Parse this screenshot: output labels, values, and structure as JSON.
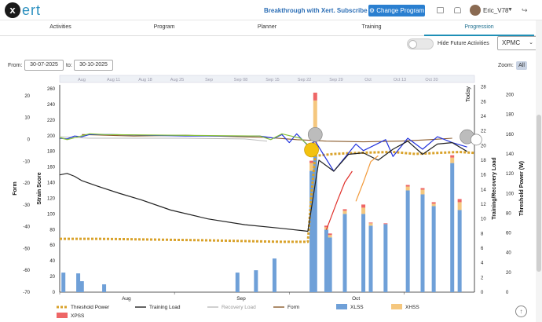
{
  "app": {
    "logo_mark": "x",
    "logo_word": "ert"
  },
  "topbar": {
    "promo": "Breakthrough with Xert. Subscribe Now!",
    "change_program": "Change Program",
    "username": "Eric_V78",
    "icons": [
      "calendar-icon",
      "bell-icon",
      "avatar",
      "chevron-down-icon",
      "sign-out-icon"
    ]
  },
  "nav": {
    "tabs": [
      {
        "label": "Activities",
        "active": false
      },
      {
        "label": "Program",
        "active": false
      },
      {
        "label": "Planner",
        "active": false
      },
      {
        "label": "Training",
        "active": false
      },
      {
        "label": "Progression",
        "active": true
      }
    ]
  },
  "controls": {
    "hide_future_label": "Hide Future Activities",
    "hide_future_on": false,
    "metric_select": "XPMC",
    "from_label": "From:",
    "from_value": "30-07-2025",
    "to_label": "to:",
    "to_value": "30-10-2025",
    "zoom_label": "Zoom:",
    "zoom_value": "All"
  },
  "chart_data": {
    "type": "line",
    "navigator_labels": [
      "Aug",
      "Aug 11",
      "Aug 18",
      "Aug 25",
      "Sep",
      "Sep 08",
      "Sep 15",
      "Sep 22",
      "Sep 29",
      "Oct",
      "Oct 13",
      "Oct 20"
    ],
    "x_ticks": [
      "Aug",
      "Sep",
      "Oct"
    ],
    "today_label": "Today",
    "form_axis": {
      "label": "Form",
      "ticks": [
        20,
        10,
        0,
        -10,
        -20,
        -30,
        -40,
        -50,
        -60,
        -70
      ]
    },
    "strain_axis": {
      "label": "Strain Score",
      "ticks": [
        260,
        240,
        220,
        200,
        180,
        160,
        140,
        120,
        100,
        80,
        60,
        40,
        20,
        0
      ]
    },
    "load_axis": {
      "label": "Training/Recovery Load",
      "ticks": [
        28,
        26,
        24,
        22,
        20,
        18,
        16,
        14,
        12,
        10,
        8,
        6,
        4,
        2,
        0
      ]
    },
    "power_axis": {
      "label": "Threshold Power (W)",
      "ticks": [
        200,
        180,
        160,
        140,
        120,
        100,
        80,
        60,
        40,
        20,
        0
      ]
    },
    "series": [
      {
        "name": "Threshold Power",
        "color": "#d9a22b",
        "style": "dotted"
      },
      {
        "name": "Training Load",
        "color": "#222222",
        "style": "line"
      },
      {
        "name": "Recovery Load",
        "color": "#bbbbbb",
        "style": "line"
      },
      {
        "name": "Form",
        "color": "#8a5a2b",
        "style": "line"
      },
      {
        "name": "XLSS",
        "color": "#6fa0d8",
        "style": "bar"
      },
      {
        "name": "XHSS",
        "color": "#f5c77e",
        "style": "bar"
      },
      {
        "name": "XPSS",
        "color": "#ee6666",
        "style": "bar"
      }
    ],
    "xlss_bars": [
      {
        "day": 1,
        "xlss": 25,
        "xhss": 0,
        "xpss": 0
      },
      {
        "day": 5,
        "xlss": 24,
        "xhss": 0,
        "xpss": 0
      },
      {
        "day": 6,
        "xlss": 14,
        "xhss": 0,
        "xpss": 0
      },
      {
        "day": 12,
        "xlss": 10,
        "xhss": 0,
        "xpss": 0
      },
      {
        "day": 48,
        "xlss": 25,
        "xhss": 0,
        "xpss": 0
      },
      {
        "day": 53,
        "xlss": 28,
        "xhss": 0,
        "xpss": 0
      },
      {
        "day": 58,
        "xlss": 43,
        "xhss": 0,
        "xpss": 0
      },
      {
        "day": 68,
        "xlss": 155,
        "xhss": 10,
        "xpss": 3
      },
      {
        "day": 69,
        "xlss": 180,
        "xhss": 65,
        "xpss": 10
      },
      {
        "day": 72,
        "xlss": 80,
        "xhss": 3,
        "xpss": 2
      },
      {
        "day": 73,
        "xlss": 70,
        "xhss": 3,
        "xpss": 2
      },
      {
        "day": 77,
        "xlss": 100,
        "xhss": 4,
        "xpss": 2
      },
      {
        "day": 82,
        "xlss": 100,
        "xhss": 8,
        "xpss": 4
      },
      {
        "day": 84,
        "xlss": 85,
        "xhss": 3,
        "xpss": 1
      },
      {
        "day": 88,
        "xlss": 87,
        "xhss": 0,
        "xpss": 1
      },
      {
        "day": 94,
        "xlss": 130,
        "xhss": 5,
        "xpss": 2
      },
      {
        "day": 98,
        "xlss": 125,
        "xhss": 6,
        "xpss": 2
      },
      {
        "day": 101,
        "xlss": 110,
        "xhss": 3,
        "xpss": 2
      },
      {
        "day": 106,
        "xlss": 165,
        "xhss": 7,
        "xpss": 3
      },
      {
        "day": 108,
        "xlss": 105,
        "xhss": 10,
        "xpss": 4
      }
    ],
    "training_load": [
      [
        0,
        16
      ],
      [
        2,
        16.2
      ],
      [
        4,
        15.8
      ],
      [
        6,
        15.2
      ],
      [
        10,
        14.5
      ],
      [
        16,
        13.5
      ],
      [
        22,
        12.6
      ],
      [
        30,
        11.2
      ],
      [
        40,
        10
      ],
      [
        50,
        9.2
      ],
      [
        60,
        8.7
      ],
      [
        67,
        8.3
      ],
      [
        70,
        18
      ],
      [
        74,
        16.5
      ],
      [
        78,
        18.8
      ],
      [
        82,
        19
      ],
      [
        86,
        18
      ],
      [
        90,
        19.5
      ],
      [
        94,
        20.6
      ],
      [
        98,
        18.8
      ],
      [
        102,
        20.2
      ],
      [
        106,
        20.4
      ],
      [
        110,
        19.2
      ]
    ],
    "recovery_load": [
      [
        0,
        21.2
      ],
      [
        8,
        21
      ],
      [
        18,
        21
      ],
      [
        34,
        21
      ],
      [
        50,
        20.9
      ],
      [
        56,
        20.6
      ]
    ],
    "form_blue": [
      [
        0,
        21
      ],
      [
        2,
        20.9
      ],
      [
        4,
        21.3
      ],
      [
        6,
        21.2
      ],
      [
        8,
        21.5
      ],
      [
        14,
        21.5
      ],
      [
        34,
        21.3
      ],
      [
        54,
        21.3
      ],
      [
        58,
        21
      ],
      [
        60,
        21.5
      ],
      [
        62,
        20.4
      ],
      [
        64,
        21.6
      ],
      [
        67,
        20
      ],
      [
        69,
        20.6
      ],
      [
        74,
        16.5
      ],
      [
        80,
        20.2
      ],
      [
        82,
        19.3
      ],
      [
        84,
        19.8
      ],
      [
        88,
        20.8
      ],
      [
        90,
        18.5
      ],
      [
        94,
        21
      ],
      [
        98,
        19.5
      ],
      [
        102,
        21.2
      ],
      [
        106,
        20.4
      ],
      [
        110,
        19.8
      ]
    ],
    "form_green": [
      [
        0,
        21.1
      ],
      [
        2,
        20.8
      ],
      [
        8,
        21.6
      ],
      [
        12,
        21.5
      ],
      [
        54,
        21.3
      ],
      [
        57,
        20.8
      ],
      [
        60,
        21.6
      ],
      [
        65,
        21
      ],
      [
        67,
        20.1
      ]
    ],
    "form_red": [
      [
        72,
        8.5
      ],
      [
        75,
        12.5
      ],
      [
        77,
        15
      ],
      [
        79,
        16.5
      ]
    ],
    "form_orange": [
      [
        80,
        12.4
      ],
      [
        82,
        15
      ],
      [
        84,
        17.8
      ],
      [
        86,
        18.6
      ]
    ],
    "form_brown": [
      [
        6,
        21.5
      ],
      [
        20,
        21.3
      ],
      [
        34,
        21.4
      ],
      [
        48,
        21.2
      ],
      [
        56,
        21.1
      ],
      [
        64,
        20.8
      ],
      [
        72,
        20.6
      ],
      [
        82,
        20.5
      ],
      [
        92,
        20.6
      ],
      [
        100,
        20.8
      ],
      [
        106,
        21
      ]
    ],
    "threshold_power": [
      [
        0,
        54
      ],
      [
        10,
        54
      ],
      [
        20,
        53.5
      ],
      [
        40,
        52.5
      ],
      [
        60,
        51
      ],
      [
        67,
        51
      ],
      [
        68,
        100
      ],
      [
        69,
        138
      ],
      [
        74,
        140
      ],
      [
        80,
        141
      ],
      [
        90,
        142
      ],
      [
        96,
        140
      ],
      [
        102,
        141
      ],
      [
        108,
        142
      ],
      [
        112,
        141
      ]
    ]
  }
}
